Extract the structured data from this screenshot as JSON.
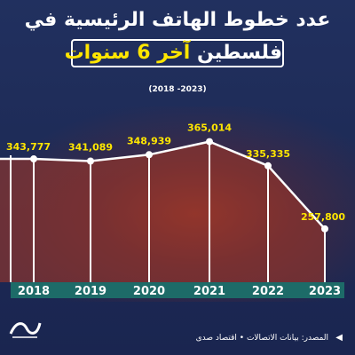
{
  "header": {
    "title_line1": "عدد خطوط الهاتف الرئيسية في",
    "title_line2_white": "فلسطين",
    "title_line2_yellow": "آخر 6 سنوات",
    "period": "(2018 -2023)"
  },
  "footer": {
    "source": "المصدر: بيانات الاتصالات • اقتصاد صدى"
  },
  "icons": {
    "source_marker": "triangle-icon",
    "logo": "brand-logo"
  },
  "colors": {
    "line": "#ffffff",
    "labels": "#ffe600",
    "axis_band": "#1d6b68",
    "vline": "#ffffff"
  },
  "chart_data": {
    "type": "area",
    "categories": [
      "2018",
      "2019",
      "2020",
      "2021",
      "2022",
      "2023"
    ],
    "values": [
      343777,
      341089,
      348939,
      365014,
      335335,
      257800
    ],
    "labels": [
      "343,777",
      "341,089",
      "348,939",
      "365,014",
      "335,335",
      "257,800"
    ],
    "title": "عدد خطوط الهاتف الرئيسية في فلسطين آخر 6 سنوات",
    "xlabel": "",
    "ylabel": "",
    "grid": false,
    "legend": "none"
  }
}
